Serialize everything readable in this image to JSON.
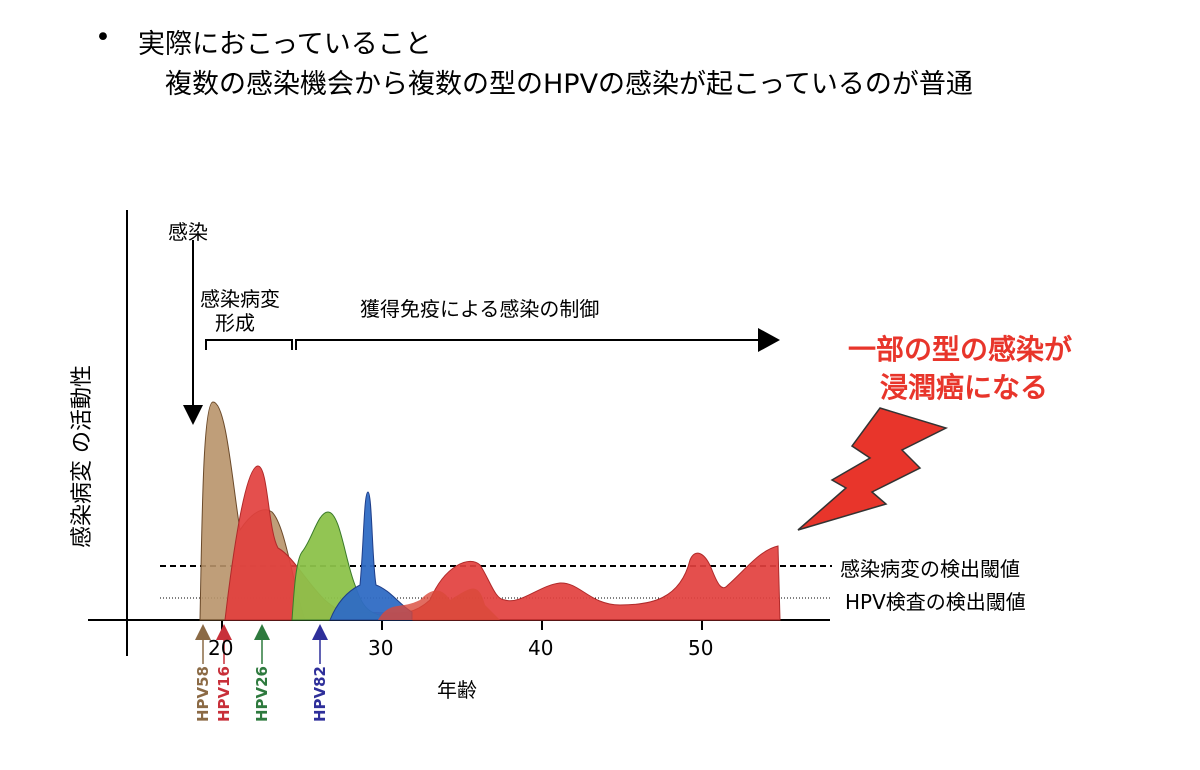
{
  "slide": {
    "bullet": "•",
    "heading": "実際におこっていること",
    "subheading": "複数の感染機会から複数の型のHPVの感染が起こっているのが普通"
  },
  "diagram": {
    "y_axis_label": "感染病変 の活動性",
    "x_axis_label": "年齢",
    "x_ticks": [
      "20",
      "30",
      "40",
      "50"
    ],
    "infection_label": "感染",
    "lesion_formation_label_1": "感染病変",
    "lesion_formation_label_2": "形成",
    "immune_control_label": "獲得免疫による感染の制御",
    "threshold_lesion_label": "感染病変の検出閾値",
    "threshold_hpv_test_label": "HPV検査の検出閾値",
    "callout_line1": "一部の型の感染が",
    "callout_line2": "浸潤癌になる",
    "hpv_types": [
      {
        "name": "HPV58",
        "color": "#8b6a45"
      },
      {
        "name": "HPV16",
        "color": "#c8303a"
      },
      {
        "name": "HPV26",
        "color": "#2e7a3e"
      },
      {
        "name": "HPV82",
        "color": "#2e2f9a"
      }
    ],
    "colors": {
      "callout": "#e8352b",
      "brown": "#b8936a",
      "red": "#e2403e",
      "green": "#8cc24a",
      "blue": "#2f6cc4"
    }
  }
}
